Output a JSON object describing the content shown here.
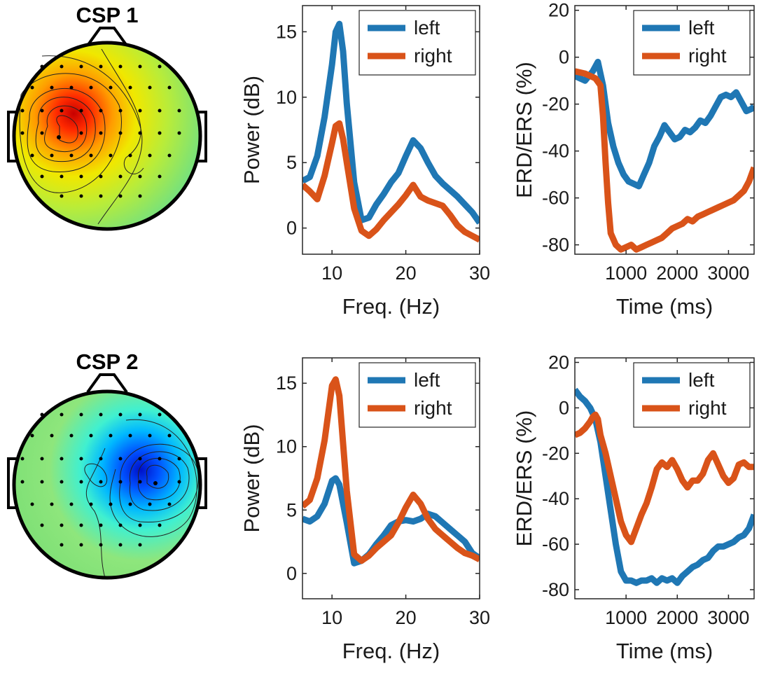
{
  "figure": {
    "panels": [
      {
        "title": "CSP 1",
        "topomap": {
          "type": "topomap",
          "colormap": "jet",
          "extreme": "positive",
          "extreme_side": "left",
          "hotspot_color": "#d10000"
        },
        "spectrum": {
          "type": "line",
          "xlabel": "Freq. (Hz)",
          "ylabel": "Power (dB)",
          "xlim": [
            6,
            30
          ],
          "ylim": [
            -2,
            17
          ],
          "xticks": [
            10,
            20,
            30
          ],
          "yticks": [
            0,
            5,
            10,
            15
          ],
          "legend": "top-right",
          "series": [
            {
              "name": "left",
              "color": "#1f77b4",
              "x": [
                6,
                7,
                8,
                9,
                10,
                10.5,
                11,
                11.5,
                12,
                13,
                14,
                15,
                16,
                17,
                18,
                19,
                20,
                21,
                22,
                23,
                24,
                25,
                26,
                27,
                28,
                29,
                30
              ],
              "values": [
                3.6,
                3.9,
                5.5,
                8.5,
                12.5,
                15.0,
                15.6,
                13.5,
                9.5,
                3.5,
                0.6,
                0.8,
                1.8,
                2.6,
                3.5,
                4.2,
                5.5,
                6.7,
                6.1,
                5.0,
                4.0,
                3.4,
                2.9,
                2.4,
                1.8,
                1.2,
                0.4
              ]
            },
            {
              "name": "right",
              "color": "#d95319",
              "x": [
                6,
                7,
                8,
                9,
                10,
                10.5,
                11,
                11.5,
                12,
                13,
                14,
                15,
                16,
                17,
                18,
                19,
                20,
                21,
                22,
                23,
                24,
                25,
                26,
                27,
                28,
                29,
                30
              ],
              "values": [
                3.3,
                2.8,
                2.2,
                4.0,
                6.5,
                7.8,
                8.0,
                6.8,
                5.0,
                1.5,
                -0.2,
                -0.6,
                -0.1,
                0.6,
                1.2,
                1.8,
                2.5,
                3.3,
                2.4,
                2.1,
                1.9,
                1.7,
                1.0,
                0.2,
                -0.3,
                -0.6,
                -0.9
              ]
            }
          ]
        },
        "erd": {
          "type": "line",
          "xlabel": "Time (ms)",
          "ylabel": "ERD/ERS (%)",
          "xlim": [
            0,
            3500
          ],
          "ylim": [
            -84,
            22
          ],
          "xticks": [
            1000,
            2000,
            3000
          ],
          "yticks": [
            -80,
            -60,
            -40,
            -20,
            0,
            20
          ],
          "legend": "top-right",
          "series": [
            {
              "name": "left",
              "color": "#1f77b4",
              "x": [
                0,
                200,
                350,
                450,
                550,
                650,
                750,
                850,
                950,
                1050,
                1150,
                1250,
                1350,
                1450,
                1550,
                1650,
                1750,
                1850,
                1950,
                2050,
                2150,
                2250,
                2350,
                2450,
                2550,
                2650,
                2750,
                2850,
                2950,
                3050,
                3150,
                3250,
                3350,
                3450,
                3500
              ],
              "values": [
                -8,
                -10,
                -6,
                -2,
                -12,
                -28,
                -38,
                -45,
                -50,
                -53,
                -54,
                -55,
                -50,
                -45,
                -38,
                -34,
                -29,
                -32,
                -35,
                -34,
                -31,
                -32,
                -30,
                -27,
                -28,
                -25,
                -21,
                -17,
                -16,
                -17,
                -15,
                -19,
                -23,
                -22,
                -21
              ]
            },
            {
              "name": "right",
              "color": "#d95319",
              "x": [
                0,
                200,
                400,
                500,
                550,
                600,
                650,
                700,
                800,
                900,
                1000,
                1100,
                1200,
                1300,
                1400,
                1500,
                1600,
                1700,
                1800,
                1900,
                2000,
                2100,
                2200,
                2300,
                2400,
                2500,
                2600,
                2700,
                2800,
                2900,
                3000,
                3100,
                3200,
                3300,
                3400,
                3500
              ],
              "values": [
                -6,
                -7,
                -9,
                -12,
                -25,
                -45,
                -62,
                -75,
                -80,
                -82,
                -81,
                -80,
                -82,
                -81,
                -80,
                -79,
                -78,
                -77,
                -75,
                -73,
                -72,
                -71,
                -69,
                -70,
                -68,
                -67,
                -66,
                -65,
                -64,
                -63,
                -62,
                -61,
                -59,
                -57,
                -53,
                -47
              ]
            }
          ]
        }
      },
      {
        "title": "CSP 2",
        "topomap": {
          "type": "topomap",
          "colormap": "jet",
          "extreme": "negative",
          "extreme_side": "right",
          "hotspot_color": "#0016d9"
        },
        "spectrum": {
          "type": "line",
          "xlabel": "Freq. (Hz)",
          "ylabel": "Power (dB)",
          "xlim": [
            6,
            30
          ],
          "ylim": [
            -2,
            17
          ],
          "xticks": [
            10,
            20,
            30
          ],
          "yticks": [
            0,
            5,
            10,
            15
          ],
          "legend": "top-right",
          "series": [
            {
              "name": "left",
              "color": "#1f77b4",
              "x": [
                6,
                7,
                8,
                9,
                10,
                10.5,
                11,
                12,
                13,
                14,
                15,
                16,
                17,
                18,
                19,
                20,
                21,
                22,
                23,
                24,
                25,
                26,
                27,
                28,
                29,
                30
              ],
              "values": [
                4.3,
                4.1,
                4.5,
                5.5,
                7.3,
                7.5,
                7.0,
                4.0,
                0.8,
                1.0,
                1.5,
                2.3,
                3.0,
                3.8,
                4.1,
                4.2,
                4.1,
                4.3,
                4.7,
                4.5,
                4.0,
                3.5,
                3.0,
                2.5,
                1.6,
                1.2
              ]
            },
            {
              "name": "right",
              "color": "#d95319",
              "x": [
                6,
                7,
                8,
                9,
                10,
                10.5,
                11,
                12,
                13,
                14,
                15,
                16,
                17,
                18,
                19,
                20,
                21,
                22,
                23,
                24,
                25,
                26,
                27,
                28,
                29,
                30
              ],
              "values": [
                5.3,
                5.8,
                7.5,
                10.5,
                14.8,
                15.3,
                14.0,
                6.5,
                1.5,
                1.0,
                1.4,
                2.0,
                2.5,
                3.0,
                4.0,
                5.2,
                6.2,
                5.5,
                4.3,
                3.5,
                3.0,
                2.5,
                2.0,
                1.6,
                1.4,
                1.1
              ]
            }
          ]
        },
        "erd": {
          "type": "line",
          "xlabel": "Time (ms)",
          "ylabel": "ERD/ERS (%)",
          "xlim": [
            0,
            3500
          ],
          "ylim": [
            -84,
            22
          ],
          "xticks": [
            1000,
            2000,
            3000
          ],
          "yticks": [
            -80,
            -60,
            -40,
            -20,
            0,
            20
          ],
          "legend": "top-right",
          "series": [
            {
              "name": "left",
              "color": "#1f77b4",
              "x": [
                0,
                100,
                200,
                300,
                400,
                500,
                600,
                700,
                800,
                900,
                1000,
                1100,
                1200,
                1300,
                1400,
                1500,
                1600,
                1700,
                1800,
                1900,
                2000,
                2100,
                2200,
                2300,
                2400,
                2500,
                2600,
                2700,
                2800,
                2900,
                3000,
                3100,
                3200,
                3300,
                3400,
                3500
              ],
              "values": [
                8,
                5,
                3,
                0,
                -5,
                -15,
                -30,
                -45,
                -60,
                -72,
                -76,
                -76,
                -77,
                -76,
                -76,
                -75,
                -77,
                -75,
                -76,
                -75,
                -77,
                -74,
                -72,
                -70,
                -69,
                -67,
                -66,
                -63,
                -61,
                -61,
                -60,
                -59,
                -57,
                -56,
                -53,
                -47
              ]
            },
            {
              "name": "right",
              "color": "#d95319",
              "x": [
                0,
                100,
                200,
                300,
                350,
                400,
                450,
                500,
                600,
                700,
                800,
                900,
                1000,
                1100,
                1200,
                1300,
                1400,
                1500,
                1600,
                1700,
                1800,
                1900,
                2000,
                2100,
                2200,
                2300,
                2400,
                2500,
                2600,
                2700,
                2800,
                2900,
                3000,
                3100,
                3200,
                3300,
                3400,
                3500
              ],
              "values": [
                -12,
                -11,
                -9,
                -6,
                -4,
                -3,
                -5,
                -12,
                -20,
                -30,
                -40,
                -50,
                -56,
                -59,
                -53,
                -47,
                -42,
                -35,
                -27,
                -24,
                -26,
                -23,
                -27,
                -32,
                -35,
                -32,
                -32,
                -29,
                -23,
                -20,
                -25,
                -30,
                -33,
                -31,
                -25,
                -24,
                -26,
                -26
              ]
            }
          ]
        }
      }
    ]
  }
}
